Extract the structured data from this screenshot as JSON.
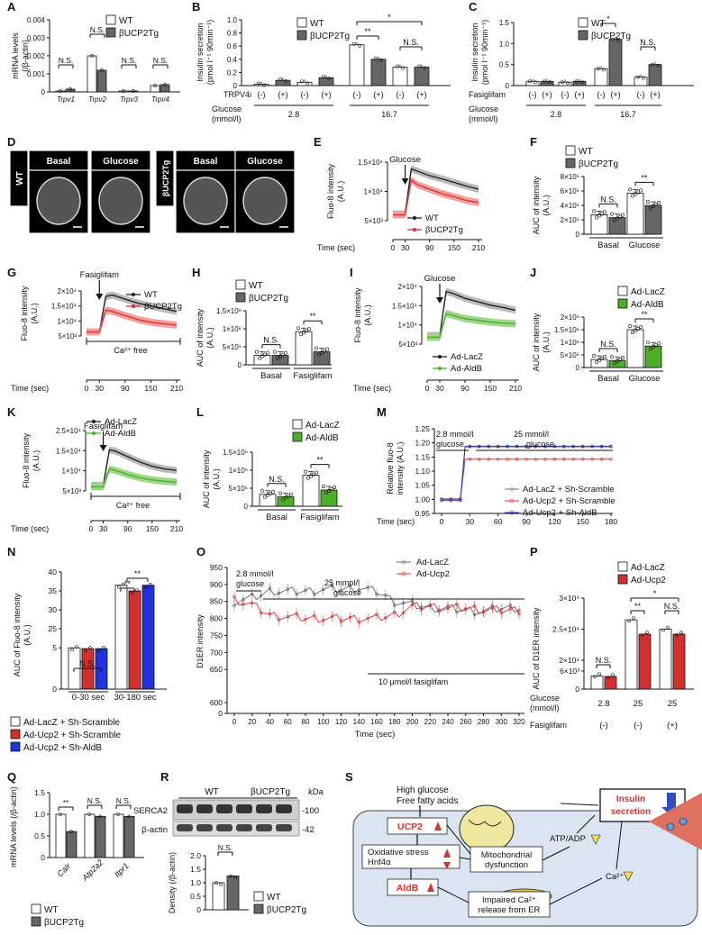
{
  "panel_labels": [
    "A",
    "B",
    "C",
    "D",
    "E",
    "F",
    "G",
    "H",
    "I",
    "J",
    "K",
    "L",
    "M",
    "N",
    "O",
    "P",
    "Q",
    "R",
    "S"
  ],
  "colors": {
    "wt": "#ffffff",
    "tg": "#666666",
    "lacz": "#ffffff",
    "aldb": "#4caf2a",
    "ucp2": "#d32f2f",
    "shaldb": "#2233dd",
    "red": "#e03030"
  },
  "panelA": {
    "ylabel": "mRNA levels (/β-actin)",
    "ticks": [
      "0",
      "0.001",
      "0.002",
      "0.003",
      "0.004"
    ],
    "genes": [
      "Trpv1",
      "Trpv2",
      "Trpv3",
      "Trpv4"
    ],
    "sig": [
      "N.S.",
      "N.S.",
      "N.S.",
      "N.S."
    ],
    "legend": [
      "WT",
      "βUCP2Tg"
    ]
  },
  "panelB": {
    "ylabel": "Insulin secretion (pmol l⁻¹ 90min⁻¹)",
    "ticks": [
      "0",
      "0.2",
      "0.4",
      "0.6",
      "0.8",
      "1.0"
    ],
    "row1_label": "TRPV4i",
    "row1": [
      "(-)",
      "(+)",
      "(-)",
      "(+)",
      "(-)",
      "(+)",
      "(-)",
      "(+)"
    ],
    "row2_label": "Glucose (mmol/l)",
    "glucose": [
      "2.8",
      "16.7"
    ],
    "sig": [
      "**",
      "*",
      "N.S."
    ],
    "legend": [
      "WT",
      "βUCP2Tg"
    ]
  },
  "panelC": {
    "ylabel": "Insulin secretion (pmol l⁻¹ 90min⁻¹)",
    "ticks": [
      "0",
      "0.5",
      "1.0",
      "1.5"
    ],
    "row1_label": "Fasiglifam",
    "row1": [
      "(-)",
      "(+)",
      "(-)",
      "(+)",
      "(-)",
      "(+)",
      "(-)",
      "(+)"
    ],
    "row2_label": "Glucose (mmol/l)",
    "glucose": [
      "2.8",
      "16.7"
    ],
    "sig": [
      "*",
      "N.S."
    ],
    "legend": [
      "WT",
      "βUCP2Tg"
    ]
  },
  "panelD": {
    "wt_label": "WT",
    "tg_label": "βUCP2Tg",
    "cols": [
      "Basal",
      "Glucose",
      "Basal",
      "Glucose"
    ]
  },
  "panelE": {
    "ylabel": "Fluo-8 intensity (A.U.)",
    "ticks": [
      "5×10³",
      "1×10⁴",
      "1.5×10⁴"
    ],
    "arrow": "Glucose",
    "xticks": [
      "0",
      "30",
      "90",
      "150",
      "210"
    ],
    "xlabel": "Time (sec)",
    "legend": [
      "WT",
      "βUCP2Tg"
    ]
  },
  "panelF": {
    "ylabel": "AUC of intensity (A.U.)",
    "ticks": [
      "0",
      "2×10⁵",
      "4×10⁵",
      "6×10⁵",
      "8×10⁵"
    ],
    "groups": [
      "Basal",
      "Glucose"
    ],
    "sig": [
      "N.S.",
      "**"
    ],
    "legend": [
      "WT",
      "βUCP2Tg"
    ]
  },
  "panelG": {
    "ylabel": "Fluo-8 intensity (A.U.)",
    "ticks": [
      "5×10³",
      "1×10⁴",
      "1.5×10⁴",
      "2×10⁴"
    ],
    "arrow": "Fasiglifam",
    "bar_label": "Ca²⁺ free",
    "xticks": [
      "0",
      "30",
      "90",
      "150",
      "210"
    ],
    "xlabel": "Time (sec)",
    "legend": [
      "WT",
      "βUCP2Tg"
    ]
  },
  "panelH": {
    "ylabel": "AUC of intensity (A.U.)",
    "ticks": [
      "0",
      "5×10⁵",
      "1×10⁶",
      "1.5×10⁶"
    ],
    "groups": [
      "Basal",
      "Fasiglifam"
    ],
    "sig": [
      "N.S.",
      "**"
    ],
    "legend": [
      "WT",
      "βUCP2Tg"
    ]
  },
  "panelI": {
    "ylabel": "Fluo-8 intensity (A.U.)",
    "ticks": [
      "5×10³",
      "1×10⁴",
      "1.5×10⁴",
      "2×10⁴"
    ],
    "arrow": "Glucose",
    "xticks": [
      "0",
      "30",
      "90",
      "150",
      "210"
    ],
    "xlabel": "Time (sec)",
    "legend": [
      "Ad-LacZ",
      "Ad-AldB"
    ]
  },
  "panelJ": {
    "ylabel": "AUC of intensity (A.U.)",
    "ticks": [
      "0",
      "5×10⁵",
      "1×10⁶",
      "1.5×10⁶",
      "2×10⁶"
    ],
    "groups": [
      "Basal",
      "Glucose"
    ],
    "sig": [
      "N.S.",
      "**"
    ],
    "legend": [
      "Ad-LacZ",
      "Ad-AldB"
    ]
  },
  "panelK": {
    "ylabel": "Fluo-8 intensity (A.U.)",
    "ticks": [
      "5×10³",
      "1×10⁴",
      "1.5×10⁴",
      "2.5×10⁴"
    ],
    "arrow": "Fasiglifam",
    "bar_label": "Ca²⁺ free",
    "xticks": [
      "0",
      "30",
      "90",
      "150",
      "210"
    ],
    "xlabel": "Time (sec)",
    "legend": [
      "Ad-LacZ",
      "Ad-AldB"
    ]
  },
  "panelL": {
    "ylabel": "AUC of intensity (A.U.)",
    "ticks": [
      "0",
      "5×10⁵",
      "1×10⁶",
      "1.5×10⁶"
    ],
    "groups": [
      "Basal",
      "Fasiglifam"
    ],
    "sig": [
      "N.S.",
      "**"
    ],
    "legend": [
      "Ad-LacZ",
      "Ad-AldB"
    ]
  },
  "panelM": {
    "ylabel": "Relative fluo-8 intensity (A.U.)",
    "ticks": [
      "0.95",
      "1.00",
      "1.05",
      "1.10",
      "1.15",
      "1.20",
      "1.25"
    ],
    "xticks": [
      "0",
      "30",
      "60",
      "90",
      "120",
      "150",
      "180"
    ],
    "xlabel": "Time (sec)",
    "ann1": "2.8 mmol/l glucose",
    "ann2": "25 mmol/l glucose",
    "legend": [
      "Ad-LacZ + Sh-Scramble",
      "Ad-Ucp2 + Sh-Scramble",
      "Ad-Ucp2 + Sh-AldB"
    ]
  },
  "panelN": {
    "ylabel": "AUC of Fluo-8 intensity (A.U.)",
    "ticks": [
      "0",
      "5",
      "25",
      "30",
      "35",
      "40"
    ],
    "groups": [
      "0-30 sec",
      "30-180 sec"
    ],
    "sig": [
      "N.S.",
      "**",
      "**"
    ],
    "legend": [
      "Ad-LacZ + Sh-Scramble",
      "Ad-Ucp2 + Sh-Scramble",
      "Ad-Ucp2 + Sh-AldB"
    ]
  },
  "panelO": {
    "ylabel": "D1ER intensity",
    "ticks": [
      "0",
      "600",
      "650",
      "700",
      "750",
      "800",
      "850",
      "900",
      "950"
    ],
    "xticks": [
      "0",
      "20",
      "40",
      "60",
      "80",
      "100",
      "120",
      "140",
      "160",
      "180",
      "200",
      "220",
      "240",
      "260",
      "280",
      "300",
      "320"
    ],
    "xlabel": "Time (sec)",
    "ann1": "2.8 mmol/l glucose",
    "ann2": "25 mmol/l glucose",
    "ann3": "10 μmol/l fasiglifam",
    "legend": [
      "Ad-LacZ",
      "Ad-Ucp2"
    ]
  },
  "panelP": {
    "ylabel": "AUC of D1ER intensity",
    "ticks": [
      "0",
      "6×10³",
      "2×10⁴",
      "2.5×10⁴",
      "3×10⁴"
    ],
    "row1_label": "Glucose (mmol/l)",
    "glucose": [
      "2.8",
      "25",
      "25"
    ],
    "row2_label": "Fasiglifam",
    "fasi": [
      "(-)",
      "(-)",
      "(+)"
    ],
    "sig": [
      "N.S.",
      "**",
      "N.S.",
      "*"
    ],
    "legend": [
      "Ad-LacZ",
      "Ad-Ucp2"
    ]
  },
  "panelQ": {
    "ylabel": "mRNA levels (/β-actin)",
    "ticks": [
      "0",
      "0.5",
      "1.0",
      "1.5"
    ],
    "genes": [
      "Calr",
      "Atp2a2",
      "Itpr1"
    ],
    "sig": [
      "**",
      "N.S.",
      "N.S."
    ],
    "legend": [
      "WT",
      "βUCP2Tg"
    ]
  },
  "panelR": {
    "blot_groups": [
      "WT",
      "βUCP2Tg"
    ],
    "kda": "kDa",
    "bands": [
      "SERCA2",
      "β-actin"
    ],
    "band_kda": [
      "-100",
      "-42"
    ],
    "ylabel": "Density (/β-actin)",
    "ticks": [
      "0",
      "0.5",
      "1.0",
      "1.5",
      "2.0"
    ],
    "sig": "N.S.",
    "legend": [
      "WT",
      "βUCP2Tg"
    ]
  },
  "panelS": {
    "top1": "High glucose",
    "top2": "Free fatty acids",
    "ucp2": "UCP2",
    "ox1": "Oxidative stress",
    "ox2": "Hnf4α",
    "aldb": "AldB",
    "mito1": "Mitochondrial",
    "mito2": "dysfunction",
    "er1": "Impaired Ca²⁺",
    "er2": "release from ER",
    "atp": "ATP/ADP",
    "ca": "Ca²⁺",
    "ins1": "Insulin",
    "ins2": "secretion"
  },
  "chart_data": [
    {
      "panel": "A",
      "type": "bar",
      "title": "",
      "ylabel": "mRNA levels (/β-actin)",
      "ylim": [
        0,
        0.004
      ],
      "categories": [
        "Trpv1",
        "Trpv2",
        "Trpv3",
        "Trpv4"
      ],
      "series": [
        {
          "name": "WT",
          "values": [
            5e-05,
            0.002,
            5e-05,
            0.00035
          ]
        },
        {
          "name": "βUCP2Tg",
          "values": [
            0.00015,
            0.0012,
            5e-05,
            0.0004
          ]
        }
      ]
    },
    {
      "panel": "B",
      "type": "bar",
      "ylabel": "Insulin secretion (pmol l⁻¹ 90min⁻¹)",
      "ylim": [
        0,
        1.0
      ],
      "categories": [
        "2.8 (-)",
        "2.8 (+)",
        "16.7 (-)",
        "16.7 (+)"
      ],
      "series": [
        {
          "name": "WT",
          "values": [
            0.02,
            0.05,
            0.62,
            0.28
          ]
        },
        {
          "name": "βUCP2Tg",
          "values": [
            0.08,
            0.12,
            0.4,
            0.28
          ]
        }
      ]
    },
    {
      "panel": "C",
      "type": "bar",
      "ylabel": "Insulin secretion (pmol l⁻¹ 90min⁻¹)",
      "ylim": [
        0,
        1.5
      ],
      "categories": [
        "2.8 (-)",
        "2.8 (+)",
        "16.7 (-)",
        "16.7 (+)"
      ],
      "series": [
        {
          "name": "WT",
          "values": [
            0.1,
            0.08,
            0.4,
            0.2
          ]
        },
        {
          "name": "βUCP2Tg",
          "values": [
            0.1,
            0.1,
            1.1,
            0.5
          ]
        }
      ]
    },
    {
      "panel": "F",
      "type": "bar",
      "ylabel": "AUC of intensity (A.U.)",
      "ylim": [
        0,
        800000
      ],
      "categories": [
        "Basal",
        "Glucose"
      ],
      "series": [
        {
          "name": "WT",
          "values": [
            270000,
            570000
          ]
        },
        {
          "name": "βUCP2Tg",
          "values": [
            230000,
            400000
          ]
        }
      ]
    },
    {
      "panel": "H",
      "type": "bar",
      "ylabel": "AUC of intensity (A.U.)",
      "ylim": [
        0,
        1500000
      ],
      "categories": [
        "Basal",
        "Fasiglifam"
      ],
      "series": [
        {
          "name": "WT",
          "values": [
            260000,
            920000
          ]
        },
        {
          "name": "βUCP2Tg",
          "values": [
            260000,
            360000
          ]
        }
      ]
    },
    {
      "panel": "J",
      "type": "bar",
      "ylabel": "AUC of intensity (A.U.)",
      "ylim": [
        0,
        2000000
      ],
      "categories": [
        "Basal",
        "Glucose"
      ],
      "series": [
        {
          "name": "Ad-LacZ",
          "values": [
            320000,
            1500000
          ]
        },
        {
          "name": "Ad-AldB",
          "values": [
            280000,
            850000
          ]
        }
      ]
    },
    {
      "panel": "L",
      "type": "bar",
      "ylabel": "AUC of intensity (A.U.)",
      "ylim": [
        0,
        1500000
      ],
      "categories": [
        "Basal",
        "Fasiglifam"
      ],
      "series": [
        {
          "name": "Ad-LacZ",
          "values": [
            330000,
            860000
          ]
        },
        {
          "name": "Ad-AldB",
          "values": [
            260000,
            450000
          ]
        }
      ]
    },
    {
      "panel": "N",
      "type": "bar",
      "ylabel": "AUC of Fluo-8 intensity (A.U.)",
      "ylim": [
        0,
        40
      ],
      "categories": [
        "0-30 sec",
        "30-180 sec"
      ],
      "series": [
        {
          "name": "Ad-LacZ + Sh-Scramble",
          "values": [
            5,
            36.5
          ]
        },
        {
          "name": "Ad-Ucp2 + Sh-Scramble",
          "values": [
            4.9,
            35
          ]
        },
        {
          "name": "Ad-Ucp2 + Sh-AldB",
          "values": [
            4.9,
            36.5
          ]
        }
      ]
    },
    {
      "panel": "P",
      "type": "bar",
      "ylabel": "AUC of D1ER intensity",
      "ylim": [
        0,
        30000
      ],
      "categories": [
        "2.8 (-)",
        "25 (-)",
        "25 (+)"
      ],
      "series": [
        {
          "name": "Ad-LacZ",
          "values": [
            4400,
            26500,
            25000
          ]
        },
        {
          "name": "Ad-Ucp2",
          "values": [
            4200,
            24200,
            24200
          ]
        }
      ]
    },
    {
      "panel": "Q",
      "type": "bar",
      "ylabel": "mRNA levels (/β-actin)",
      "ylim": [
        0,
        1.5
      ],
      "categories": [
        "Calr",
        "Atp2a2",
        "Itpr1"
      ],
      "series": [
        {
          "name": "WT",
          "values": [
            1.0,
            1.0,
            1.0
          ]
        },
        {
          "name": "βUCP2Tg",
          "values": [
            0.6,
            0.95,
            0.95
          ]
        }
      ]
    },
    {
      "panel": "R",
      "type": "bar",
      "ylabel": "Density (/β-actin)",
      "ylim": [
        0,
        2.0
      ],
      "categories": [
        "SERCA2"
      ],
      "series": [
        {
          "name": "WT",
          "values": [
            1.0
          ]
        },
        {
          "name": "βUCP2Tg",
          "values": [
            1.25
          ]
        }
      ]
    },
    {
      "panel": "E",
      "type": "line",
      "xlabel": "Time (sec)",
      "ylabel": "Fluo-8 intensity (A.U.)",
      "x": [
        0,
        30,
        45,
        60,
        90,
        120,
        150,
        180,
        210
      ],
      "series": [
        {
          "name": "WT",
          "values": [
            5000,
            5000,
            15000,
            14500,
            13500,
            12800,
            12000,
            11200,
            10500
          ]
        },
        {
          "name": "βUCP2Tg",
          "values": [
            4800,
            4800,
            12500,
            11500,
            10500,
            9500,
            8800,
            8000,
            7500
          ]
        }
      ]
    },
    {
      "panel": "G",
      "type": "line",
      "xlabel": "Time (sec)",
      "ylabel": "Fluo-8 intensity (A.U.)",
      "x": [
        0,
        30,
        45,
        60,
        90,
        120,
        150,
        180,
        210
      ],
      "series": [
        {
          "name": "WT",
          "values": [
            6000,
            6000,
            19000,
            19500,
            18000,
            16500,
            15500,
            14500,
            13500
          ]
        },
        {
          "name": "βUCP2Tg",
          "values": [
            6000,
            6000,
            14000,
            13500,
            12000,
            10500,
            9500,
            9000,
            8500
          ]
        }
      ]
    },
    {
      "panel": "I",
      "type": "line",
      "xlabel": "Time (sec)",
      "ylabel": "Fluo-8 intensity (A.U.)",
      "x": [
        0,
        30,
        45,
        60,
        90,
        120,
        150,
        180,
        210
      ],
      "series": [
        {
          "name": "Ad-LacZ",
          "values": [
            6500,
            6500,
            19500,
            19000,
            17500,
            16500,
            15500,
            14800,
            14000
          ]
        },
        {
          "name": "Ad-AldB",
          "values": [
            6000,
            6000,
            13000,
            12500,
            11500,
            11000,
            10500,
            10200,
            10000
          ]
        }
      ]
    },
    {
      "panel": "K",
      "type": "line",
      "xlabel": "Time (sec)",
      "ylabel": "Fluo-8 intensity (A.U.)",
      "x": [
        0,
        30,
        45,
        60,
        90,
        120,
        150,
        180,
        210
      ],
      "series": [
        {
          "name": "Ad-LacZ",
          "values": [
            6000,
            6000,
            19000,
            18500,
            16500,
            14500,
            13000,
            12000,
            11500
          ]
        },
        {
          "name": "Ad-AldB",
          "values": [
            5500,
            5500,
            12000,
            11500,
            10000,
            8800,
            8000,
            7500,
            7200
          ]
        }
      ]
    },
    {
      "panel": "M",
      "type": "line",
      "xlabel": "Time (sec)",
      "ylabel": "Relative fluo-8 intensity (A.U.)",
      "ylim": [
        0.95,
        1.25
      ],
      "x": [
        0,
        30,
        60,
        90,
        120,
        150,
        180
      ],
      "series": [
        {
          "name": "Ad-LacZ + Sh-Scramble",
          "values": [
            1.0,
            1.19,
            1.19,
            1.19,
            1.19,
            1.19,
            1.19
          ]
        },
        {
          "name": "Ad-Ucp2 + Sh-Scramble",
          "values": [
            1.0,
            1.14,
            1.13,
            1.13,
            1.13,
            1.13,
            1.13
          ]
        },
        {
          "name": "Ad-Ucp2 + Sh-AldB",
          "values": [
            1.0,
            1.19,
            1.19,
            1.19,
            1.19,
            1.19,
            1.19
          ]
        }
      ]
    },
    {
      "panel": "O",
      "type": "line",
      "xlabel": "Time (sec)",
      "ylabel": "D1ER intensity",
      "x": [
        0,
        20,
        40,
        60,
        80,
        100,
        120,
        140,
        160,
        180,
        200,
        220,
        240,
        260,
        280,
        300,
        320
      ],
      "series": [
        {
          "name": "Ad-LacZ",
          "values": [
            850,
            860,
            880,
            880,
            880,
            885,
            885,
            890,
            880,
            850,
            840,
            830,
            830,
            825,
            820,
            830,
            830
          ]
        },
        {
          "name": "Ad-Ucp2",
          "values": [
            855,
            840,
            810,
            805,
            800,
            800,
            800,
            800,
            800,
            810,
            835,
            835,
            830,
            830,
            825,
            825,
            825
          ]
        }
      ]
    }
  ]
}
